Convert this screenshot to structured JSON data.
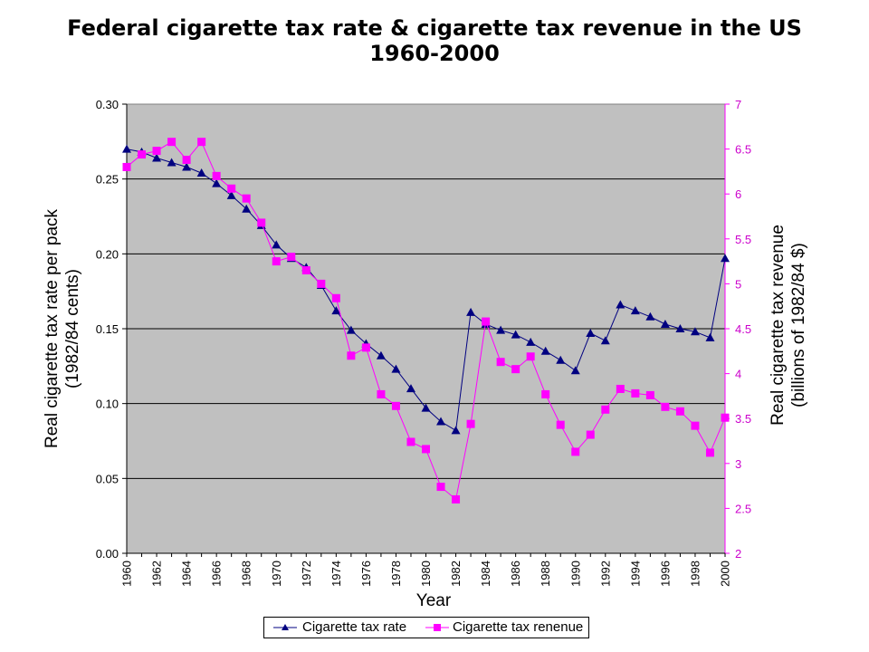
{
  "chart_data": {
    "type": "line",
    "title": "Federal cigarette tax rate & cigarette tax revenue in the US",
    "subtitle": "1960-2000",
    "xlabel": "Year",
    "ylabel_left_line1": "Real cigarette tax rate per pack",
    "ylabel_left_line2": "(1982/84 cents)",
    "ylabel_right_line1": "Real cigarette tax revenue",
    "ylabel_right_line2": "(billions of 1982/84 $)",
    "x": [
      1960,
      1961,
      1962,
      1963,
      1964,
      1965,
      1966,
      1967,
      1968,
      1969,
      1970,
      1971,
      1972,
      1973,
      1974,
      1975,
      1976,
      1977,
      1978,
      1979,
      1980,
      1981,
      1982,
      1983,
      1984,
      1985,
      1986,
      1987,
      1988,
      1989,
      1990,
      1991,
      1992,
      1993,
      1994,
      1995,
      1996,
      1997,
      1998,
      1999,
      2000
    ],
    "x_ticks": [
      "1960",
      "1962",
      "1964",
      "1966",
      "1968",
      "1970",
      "1972",
      "1974",
      "1976",
      "1978",
      "1980",
      "1982",
      "1984",
      "1986",
      "1988",
      "1990",
      "1992",
      "1994",
      "1996",
      "1998",
      "2000"
    ],
    "y_left_ticks": [
      "0.00",
      "0.05",
      "0.10",
      "0.15",
      "0.20",
      "0.25",
      "0.30"
    ],
    "y_right_ticks": [
      "2",
      "2.5",
      "3",
      "3.5",
      "4",
      "4.5",
      "5",
      "5.5",
      "6",
      "6.5",
      "7"
    ],
    "ylim_left": [
      0,
      0.3
    ],
    "ylim_right": [
      2,
      7
    ],
    "grid": "horizontal",
    "plot_background": "#c0c0c0",
    "legend_position": "bottom",
    "series": [
      {
        "name": "Cigarette tax rate",
        "axis": "left",
        "color": "#000080",
        "marker": "triangle",
        "values": [
          0.27,
          0.268,
          0.264,
          0.261,
          0.258,
          0.254,
          0.247,
          0.239,
          0.23,
          0.219,
          0.206,
          0.197,
          0.191,
          0.179,
          0.162,
          0.149,
          0.14,
          0.132,
          0.123,
          0.11,
          0.097,
          0.088,
          0.082,
          0.161,
          0.153,
          0.149,
          0.146,
          0.141,
          0.135,
          0.129,
          0.122,
          0.147,
          0.142,
          0.166,
          0.162,
          0.158,
          0.153,
          0.15,
          0.148,
          0.144,
          0.197
        ]
      },
      {
        "name": "Cigarette tax renenue",
        "axis": "right",
        "color": "#ff00ff",
        "marker": "square",
        "values": [
          6.3,
          6.44,
          6.48,
          6.58,
          6.38,
          6.58,
          6.2,
          6.06,
          5.95,
          5.68,
          5.25,
          5.3,
          5.15,
          5.0,
          4.84,
          4.2,
          4.29,
          3.77,
          3.64,
          3.24,
          3.16,
          2.74,
          2.6,
          3.44,
          4.58,
          4.13,
          4.05,
          4.19,
          3.77,
          3.43,
          3.13,
          3.32,
          3.6,
          3.83,
          3.78,
          3.76,
          3.63,
          3.58,
          3.42,
          3.12,
          3.51
        ]
      }
    ]
  }
}
